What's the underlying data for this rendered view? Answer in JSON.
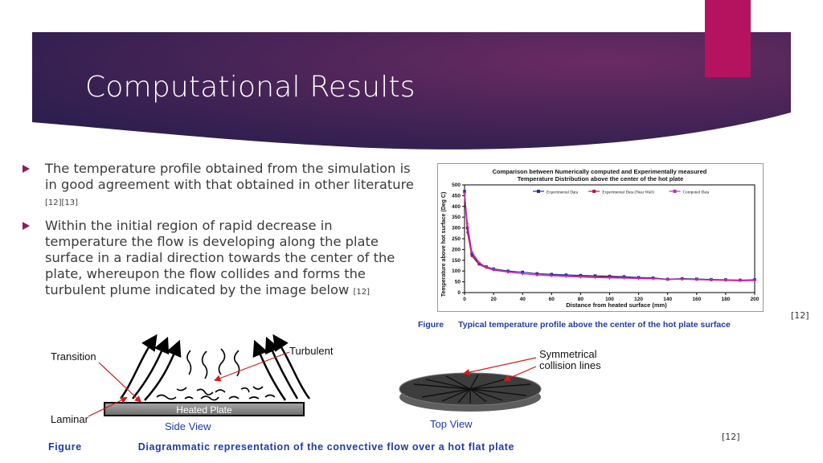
{
  "slide": {
    "title": "Computational Results",
    "accent_color": "#b5135f",
    "banner_color_dark": "#2b1e4e",
    "banner_color_light": "#6a2b62",
    "bullets": [
      {
        "text": "The temperature profile obtained from the simulation is in good agreement with that obtained in other literature ",
        "ref": "[12][13]"
      },
      {
        "text": "Within the initial region of rapid decrease in temperature the flow is developing along the plate surface in a radial direction towards the center of the plate, whereupon the flow collides and forms the turbulent plume indicated by the image below ",
        "ref": "[12]"
      }
    ],
    "ref_chart": "[12]",
    "ref_diagram": "[12]",
    "figure1_caption": {
      "label": "Figure",
      "text": "Typical temperature profile above the center of the hot plate surface"
    },
    "figure2_caption": {
      "label": "Figure",
      "text": "Diagrammatic representation of the convective flow over a hot flat plate"
    },
    "diagram_labels": {
      "transition": "Transition",
      "turbulent": "Turbulent",
      "laminar": "Laminar",
      "heated_plate": "Heated Plate",
      "side_view": "Side View",
      "top_view": "Top View",
      "symmetrical": "Symmetrical",
      "collision_lines": "collision lines"
    }
  },
  "chart_data": {
    "type": "line",
    "title": "Comparison between Numerically computed and Experimentally measured Temperature Distribution above the center of the hot plate",
    "xlabel": "Distance from heated surface (mm)",
    "ylabel": "Temperature above hot surface (Deg C)",
    "xlim": [
      0,
      200
    ],
    "ylim": [
      0,
      500
    ],
    "xticks": [
      "0",
      "20",
      "40",
      "60",
      "80",
      "100",
      "120",
      "140",
      "160",
      "180",
      "200"
    ],
    "yticks": [
      "0",
      "50",
      "100",
      "150",
      "200",
      "250",
      "300",
      "350",
      "400",
      "450",
      "500"
    ],
    "legend_position": "top",
    "series": [
      {
        "name": "Experimental Data",
        "color": "#1f2fa8",
        "x": [
          0,
          2,
          5,
          10,
          15,
          20,
          30,
          40,
          50,
          60,
          70,
          80,
          90,
          100,
          110,
          120,
          130,
          140,
          150,
          160,
          170,
          180,
          190,
          200
        ],
        "y": [
          470,
          300,
          180,
          135,
          120,
          110,
          100,
          95,
          88,
          85,
          82,
          80,
          78,
          76,
          74,
          70,
          68,
          62,
          65,
          63,
          61,
          60,
          58,
          60
        ]
      },
      {
        "name": "Experimental Data (Near Wall)",
        "color": "#c0123a",
        "x": [
          0,
          2,
          5,
          10,
          15,
          20,
          30,
          40,
          50,
          60,
          70,
          80,
          90,
          100,
          110,
          120,
          130,
          140,
          150,
          160,
          170,
          180,
          190,
          200
        ],
        "y": [
          450,
          280,
          170,
          130,
          115,
          105,
          95,
          88,
          82,
          80,
          77,
          75,
          73,
          72,
          70,
          68,
          66,
          60,
          63,
          60,
          58,
          57,
          55,
          56
        ]
      },
      {
        "name": "Computed Data",
        "color": "#c02fc0",
        "x": [
          0,
          2,
          5,
          10,
          15,
          20,
          30,
          40,
          50,
          60,
          70,
          80,
          90,
          100,
          110,
          120,
          130,
          140,
          150,
          160,
          170,
          180,
          190,
          200
        ],
        "y": [
          460,
          320,
          190,
          140,
          118,
          108,
          96,
          88,
          82,
          78,
          75,
          72,
          70,
          68,
          67,
          65,
          64,
          63,
          62,
          61,
          60,
          59,
          58,
          57
        ]
      }
    ]
  }
}
